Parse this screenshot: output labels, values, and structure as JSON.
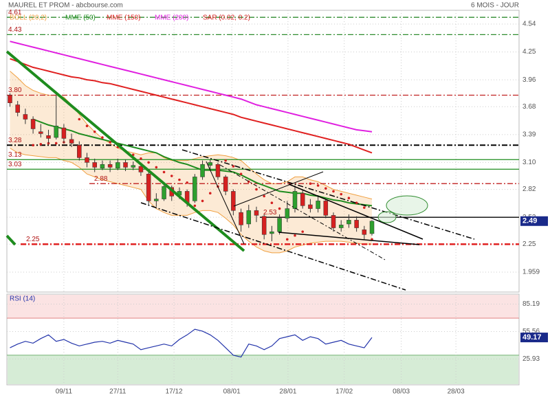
{
  "chart_data": [
    {
      "type": "candlestick",
      "title": "MAUREL ET PROM - abcbourse.com",
      "subtitle": "6 MOIS - JOUR",
      "open": [
        3.8,
        3.7,
        3.6,
        3.55,
        3.42,
        3.38,
        3.36,
        3.46,
        3.34,
        3.28,
        3.15,
        3.1,
        3.04,
        3.08,
        3.04,
        3.1,
        3.05,
        3.06,
        2.98,
        2.7,
        2.72,
        2.84,
        2.76,
        2.8,
        2.7,
        2.95,
        3.07,
        3.08,
        2.95,
        2.8,
        2.58,
        2.46,
        2.6,
        2.54,
        2.36,
        2.38,
        2.52,
        2.62,
        2.78,
        2.66,
        2.62,
        2.7,
        2.55,
        2.42,
        2.46,
        2.5,
        2.4,
        2.36
      ],
      "high": [
        3.82,
        3.74,
        3.66,
        3.58,
        3.5,
        3.44,
        3.8,
        3.5,
        3.4,
        3.32,
        3.2,
        3.14,
        3.12,
        3.12,
        3.14,
        3.13,
        3.11,
        3.09,
        3.0,
        2.78,
        2.88,
        2.86,
        2.84,
        2.82,
        2.98,
        3.12,
        3.13,
        3.1,
        2.97,
        2.82,
        2.62,
        2.66,
        2.64,
        2.56,
        2.44,
        2.56,
        2.7,
        2.86,
        2.82,
        2.72,
        2.76,
        2.72,
        2.58,
        2.5,
        2.56,
        2.54,
        2.44,
        2.5
      ],
      "low": [
        3.68,
        3.58,
        3.5,
        3.4,
        3.36,
        3.3,
        3.34,
        3.3,
        3.26,
        3.12,
        3.05,
        3.0,
        3.02,
        3.0,
        3.02,
        3.01,
        3.02,
        2.96,
        2.65,
        2.64,
        2.7,
        2.7,
        2.72,
        2.64,
        2.68,
        2.92,
        3.02,
        2.92,
        2.76,
        2.55,
        2.38,
        2.42,
        2.48,
        2.3,
        2.28,
        2.35,
        2.48,
        2.58,
        2.62,
        2.58,
        2.58,
        2.52,
        2.38,
        2.38,
        2.42,
        2.38,
        2.3,
        2.34
      ],
      "close": [
        3.72,
        3.62,
        3.55,
        3.45,
        3.4,
        3.35,
        3.48,
        3.35,
        3.3,
        3.15,
        3.1,
        3.05,
        3.08,
        3.05,
        3.1,
        3.05,
        3.07,
        3.0,
        2.7,
        2.72,
        2.85,
        2.75,
        2.8,
        2.68,
        2.95,
        3.08,
        3.1,
        2.95,
        2.8,
        2.6,
        2.45,
        2.6,
        2.55,
        2.35,
        2.38,
        2.52,
        2.62,
        2.8,
        2.65,
        2.62,
        2.7,
        2.55,
        2.42,
        2.45,
        2.5,
        2.42,
        2.35,
        2.49
      ],
      "up_color": "#2ea02e",
      "down_color": "#d62020",
      "bands": {
        "name": "BOLL (20,2)",
        "color": "#f0a040",
        "upper": [
          4.05,
          3.98,
          3.9,
          3.85,
          3.82,
          3.8,
          3.8,
          3.78,
          3.7,
          3.6,
          3.5,
          3.42,
          3.35,
          3.3,
          3.25,
          3.22,
          3.2,
          3.18,
          3.2,
          3.2,
          3.15,
          3.12,
          3.12,
          3.12,
          3.14,
          3.16,
          3.17,
          3.18,
          3.17,
          3.15,
          3.12,
          3.05,
          2.98,
          2.92,
          2.88,
          2.88,
          2.9,
          2.95,
          2.95,
          2.92,
          2.9,
          2.86,
          2.82,
          2.8,
          2.78,
          2.76,
          2.74,
          2.72
        ],
        "lower": [
          3.25,
          3.2,
          3.18,
          3.17,
          3.16,
          3.15,
          3.15,
          3.12,
          3.1,
          3.05,
          2.98,
          2.95,
          2.92,
          2.9,
          2.88,
          2.86,
          2.84,
          2.82,
          2.7,
          2.62,
          2.58,
          2.55,
          2.55,
          2.55,
          2.58,
          2.6,
          2.6,
          2.58,
          2.52,
          2.45,
          2.35,
          2.28,
          2.22,
          2.18,
          2.16,
          2.16,
          2.18,
          2.22,
          2.24,
          2.26,
          2.27,
          2.28,
          2.28,
          2.28,
          2.27,
          2.26,
          2.25,
          2.25
        ]
      },
      "series": [
        {
          "name": "MME (50)",
          "color": "#1e8c1e",
          "values": [
            null,
            null,
            null,
            3.55,
            3.52,
            3.49,
            3.47,
            3.45,
            3.43,
            3.4,
            3.38,
            3.36,
            3.34,
            3.32,
            3.3,
            3.28,
            3.26,
            3.24,
            3.22,
            3.2,
            3.16,
            3.13,
            3.1,
            3.08,
            3.05,
            3.02,
            3.02,
            3.02,
            3.01,
            3.0,
            2.97,
            2.93,
            2.89,
            2.86,
            2.83,
            2.8,
            2.79,
            2.78,
            2.78,
            2.76,
            2.75,
            2.73,
            2.71,
            2.7,
            2.68,
            2.67,
            2.66,
            2.65
          ]
        },
        {
          "name": "MME (150)",
          "color": "#e02020",
          "values": [
            4.18,
            4.15,
            4.12,
            4.09,
            4.07,
            4.05,
            4.03,
            4.01,
            3.99,
            3.98,
            3.96,
            3.95,
            3.93,
            3.92,
            3.9,
            3.88,
            3.86,
            3.84,
            3.82,
            3.8,
            3.78,
            3.76,
            3.74,
            3.72,
            3.7,
            3.68,
            3.66,
            3.64,
            3.62,
            3.6,
            3.57,
            3.55,
            3.53,
            3.51,
            3.49,
            3.47,
            3.45,
            3.43,
            3.41,
            3.39,
            3.37,
            3.35,
            3.33,
            3.31,
            3.29,
            3.26,
            3.23,
            3.2
          ]
        },
        {
          "name": "MME (200)",
          "color": "#e020e0",
          "values": [
            4.36,
            4.34,
            4.32,
            4.3,
            4.28,
            4.26,
            4.24,
            4.22,
            4.2,
            4.18,
            4.16,
            4.14,
            4.12,
            4.1,
            4.08,
            4.06,
            4.04,
            4.02,
            4.0,
            3.98,
            3.96,
            3.94,
            3.92,
            3.9,
            3.88,
            3.86,
            3.84,
            3.82,
            3.8,
            3.78,
            3.76,
            3.73,
            3.7,
            3.68,
            3.66,
            3.64,
            3.62,
            3.6,
            3.58,
            3.56,
            3.54,
            3.52,
            3.5,
            3.48,
            3.46,
            3.44,
            3.43,
            3.42
          ]
        },
        {
          "name": "SAR (0.02, 0.2)",
          "color": "#d42020",
          "dots": true,
          "values": [
            null,
            null,
            null,
            3.28,
            3.29,
            3.3,
            3.3,
            3.31,
            3.32,
            3.55,
            3.48,
            3.42,
            3.36,
            3.31,
            3.26,
            3.22,
            3.18,
            3.14,
            3.1,
            3.05,
            3.0,
            2.96,
            2.92,
            2.89,
            2.65,
            2.7,
            2.78,
            2.85,
            3.12,
            3.06,
            2.98,
            2.9,
            2.82,
            2.75,
            2.68,
            2.62,
            2.3,
            2.34,
            2.38,
            2.88,
            2.86,
            2.83,
            2.8,
            2.77,
            2.73,
            2.68,
            2.63,
            2.3
          ]
        }
      ],
      "levels": [
        {
          "value": 4.61,
          "color": "#2e8b2e",
          "style": "dashdot"
        },
        {
          "value": 4.43,
          "color": "#2e8b2e",
          "style": "dashdot"
        },
        {
          "value": 3.8,
          "label": "3.80",
          "color": "#c02020",
          "style": "dashdot"
        },
        {
          "value": 3.28,
          "color": "#000000",
          "style": "dashdot"
        },
        {
          "value": 3.13,
          "color": "#1e8c1e",
          "style": "solid"
        },
        {
          "value": 3.03,
          "color": "#1e8c1e",
          "style": "solid"
        },
        {
          "value": 2.88,
          "color": "#c02020",
          "style": "dashdot"
        },
        {
          "value": 2.53,
          "color": "#000000",
          "style": "solid"
        },
        {
          "value": 2.25,
          "color": "#e02020",
          "style": "dashdot"
        }
      ],
      "xlim": [
        -0.4,
        66.1
      ],
      "xticks": [
        {
          "value": 7,
          "label": "09/11"
        },
        {
          "value": 14,
          "label": "27/11"
        },
        {
          "value": 21.3,
          "label": "17/12"
        },
        {
          "value": 28.8,
          "label": "08/01"
        },
        {
          "value": 36.1,
          "label": "28/01"
        },
        {
          "value": 43.4,
          "label": "17/02"
        },
        {
          "value": 50.8,
          "label": "08/03"
        },
        {
          "value": 57.9,
          "label": "28/03"
        }
      ],
      "ylim": [
        1.752,
        4.683
      ],
      "yticks": [
        4.54,
        4.25,
        3.96,
        3.68,
        3.39,
        {
          "value": 3.1,
          "label": "3.10"
        },
        2.82,
        2.53,
        2.25,
        1.959
      ],
      "grid": true
    },
    {
      "type": "line",
      "title": "RSI (14)",
      "ylim": [
        -2,
        96
      ],
      "yticks": [
        85.19,
        55.56,
        25.93
      ],
      "overbought": 70,
      "oversold": 30,
      "grid": true,
      "series": [
        {
          "color": "#2233aa",
          "values": [
            38,
            42,
            45,
            43,
            48,
            52,
            45,
            47,
            43,
            40,
            42,
            44,
            45,
            43,
            46,
            44,
            42,
            36,
            38,
            40,
            42,
            40,
            47,
            52,
            58,
            56,
            52,
            46,
            38,
            30,
            28,
            42,
            40,
            36,
            40,
            48,
            50,
            52,
            46,
            50,
            48,
            42,
            44,
            46,
            42,
            40,
            38,
            49.17
          ]
        }
      ]
    }
  ]
}
